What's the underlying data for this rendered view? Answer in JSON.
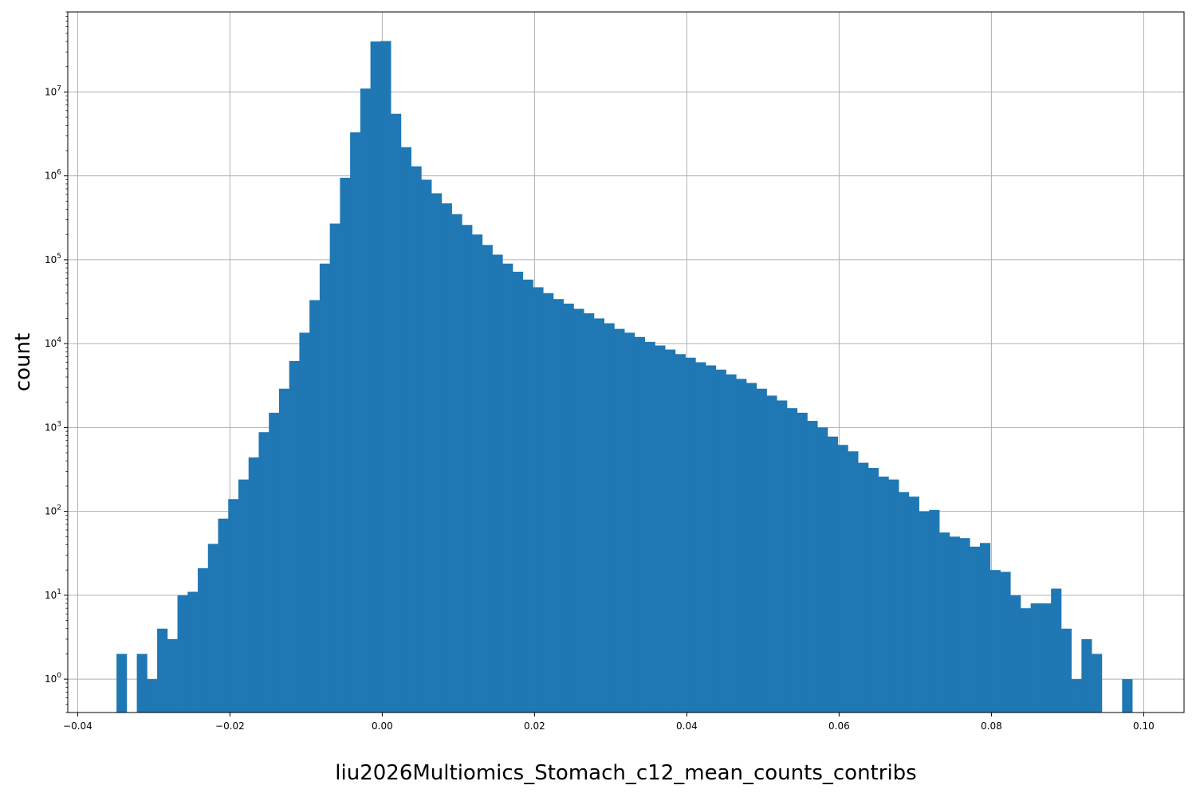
{
  "chart_data": {
    "type": "bar",
    "subtype": "histogram",
    "title": "",
    "xlabel": "liu2026Multiomics_Stomach_c12_mean_counts_contribs",
    "ylabel": "count",
    "yscale": "log",
    "grid": true,
    "bar_color": "#1f77b4",
    "grid_color": "#b0b0b0",
    "xlim": [
      -0.0413,
      0.1053
    ],
    "ylim": [
      0.4,
      90000000
    ],
    "x_ticks": [
      -0.04,
      -0.02,
      0.0,
      0.02,
      0.04,
      0.06,
      0.08,
      0.1
    ],
    "x_tick_labels": [
      "−0.04",
      "−0.02",
      "0.00",
      "0.02",
      "0.04",
      "0.06",
      "0.08",
      "0.10"
    ],
    "y_ticks": [
      1,
      10,
      100,
      1000,
      10000,
      100000,
      1000000,
      10000000
    ],
    "y_tick_labels": [
      {
        "base": "10",
        "exp": "0"
      },
      {
        "base": "10",
        "exp": "1"
      },
      {
        "base": "10",
        "exp": "2"
      },
      {
        "base": "10",
        "exp": "3"
      },
      {
        "base": "10",
        "exp": "4"
      },
      {
        "base": "10",
        "exp": "5"
      },
      {
        "base": "10",
        "exp": "6"
      },
      {
        "base": "10",
        "exp": "7"
      }
    ],
    "bins": {
      "start": -0.0349,
      "width": 0.001334,
      "counts": [
        2,
        0,
        2,
        1,
        4,
        3,
        10,
        11,
        21,
        41,
        82,
        140,
        240,
        440,
        880,
        1500,
        2900,
        6200,
        13500,
        33000,
        90000,
        270000,
        950000,
        3300000,
        11000000,
        40000000,
        40500000,
        5500000,
        2200000,
        1300000,
        900000,
        620000,
        470000,
        350000,
        260000,
        200000,
        150000,
        115000,
        90000,
        72000,
        58000,
        47000,
        40000,
        34000,
        30000,
        26000,
        23000,
        20000,
        17500,
        15000,
        13500,
        12000,
        10500,
        9500,
        8500,
        7500,
        6800,
        6000,
        5500,
        4900,
        4300,
        3800,
        3400,
        2900,
        2400,
        2100,
        1700,
        1500,
        1200,
        1000,
        780,
        620,
        520,
        380,
        330,
        260,
        240,
        170,
        150,
        100,
        104,
        56,
        50,
        48,
        38,
        42,
        20,
        19,
        10,
        7,
        8,
        8,
        12,
        4,
        1,
        3,
        2,
        0,
        0,
        1
      ]
    }
  }
}
